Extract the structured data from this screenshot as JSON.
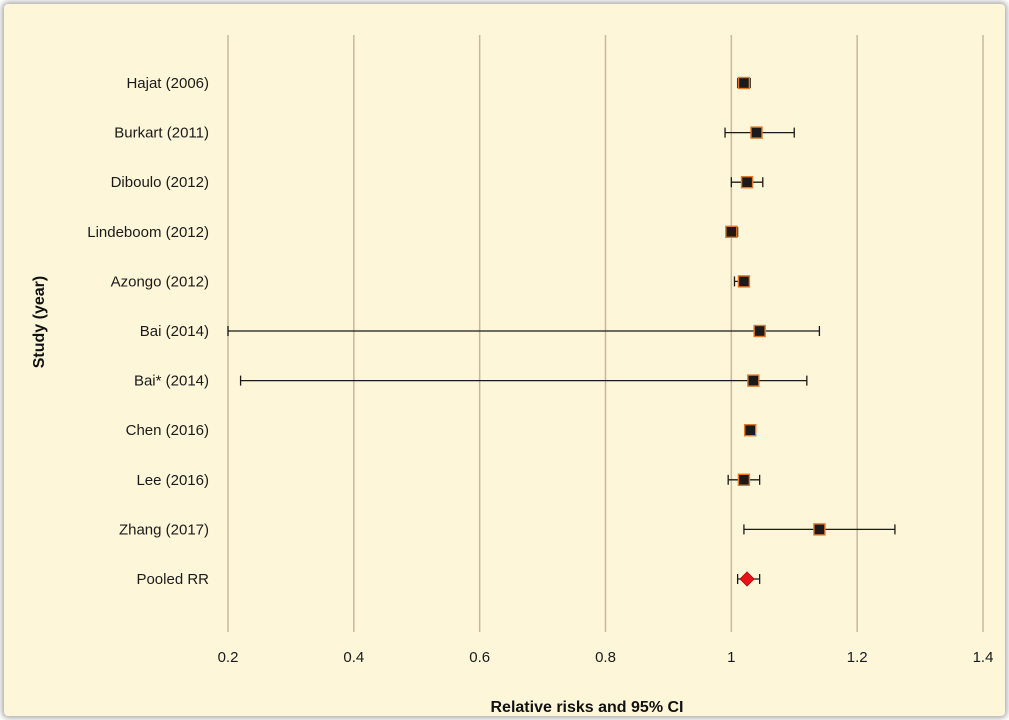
{
  "chart_data": {
    "type": "forest",
    "ylabel": "Study (year)",
    "xlabel": "Relative risks and 95% CI",
    "xlim": [
      0.2,
      1.4
    ],
    "xticks": [
      "0.2",
      "0.4",
      "0.6",
      "0.8",
      "1",
      "1.2",
      "1.4"
    ],
    "grid": "vertical",
    "studies": [
      {
        "label": "Hajat (2006)",
        "rr": 1.02,
        "lower": 1.01,
        "upper": 1.03
      },
      {
        "label": "Burkart (2011)",
        "rr": 1.04,
        "lower": 0.99,
        "upper": 1.1
      },
      {
        "label": "Diboulo (2012)",
        "rr": 1.025,
        "lower": 1.0,
        "upper": 1.05
      },
      {
        "label": "Lindeboom (2012)",
        "rr": 1.0,
        "lower": 0.995,
        "upper": 1.01
      },
      {
        "label": "Azongo (2012)",
        "rr": 1.02,
        "lower": 1.005,
        "upper": 1.025
      },
      {
        "label": "Bai (2014)",
        "rr": 1.045,
        "lower": 0.2,
        "upper": 1.14
      },
      {
        "label": "Bai* (2014)",
        "rr": 1.035,
        "lower": 0.22,
        "upper": 1.12
      },
      {
        "label": "Chen (2016)",
        "rr": 1.03,
        "lower": 1.025,
        "upper": 1.035
      },
      {
        "label": "Lee (2016)",
        "rr": 1.02,
        "lower": 0.995,
        "upper": 1.045
      },
      {
        "label": "Zhang (2017)",
        "rr": 1.14,
        "lower": 1.02,
        "upper": 1.26
      },
      {
        "label": "Pooled RR",
        "rr": 1.025,
        "lower": 1.01,
        "upper": 1.045,
        "pooled": true
      }
    ],
    "colors": {
      "background": "#fdf6d9",
      "gridline": "#c9b99a",
      "marker_fill": "#1a1a1a",
      "marker_edge": "#e07a2a",
      "pooled_marker": "#e8121b",
      "ci_line": "#1a1a1a"
    }
  }
}
